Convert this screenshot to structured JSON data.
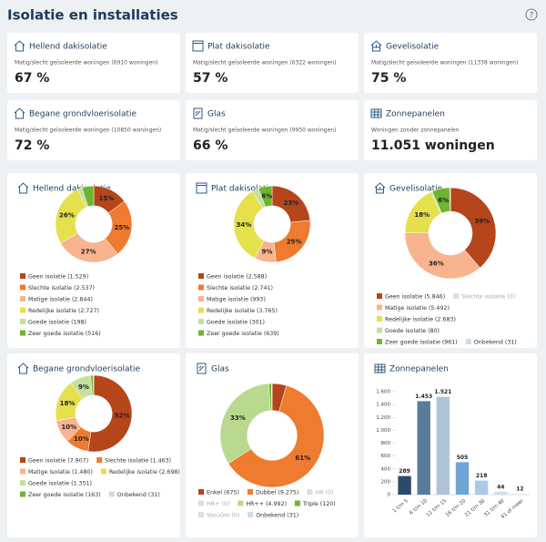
{
  "header": {
    "title": "Isolatie en installaties",
    "help": "?"
  },
  "kpis": [
    {
      "title": "Hellend dakisolatie",
      "subtitle": "Matig/slecht geïsoleerde woningen (6910 woningen)",
      "value": "67 %"
    },
    {
      "title": "Plat dakisolatie",
      "subtitle": "Matig/slecht geïsoleerde woningen (6322 woningen)",
      "value": "57 %"
    },
    {
      "title": "Gevelisolatie",
      "subtitle": "Matig/slecht geïsoleerde woningen (11338 woningen)",
      "value": "75 %"
    },
    {
      "title": "Begane grondvloerisolatie",
      "subtitle": "Matig/slecht geïsoleerde woningen (10850 woningen)",
      "value": "72 %"
    },
    {
      "title": "Glas",
      "subtitle": "Matig/slecht geïsoleerde woningen (9950 woningen)",
      "value": "66 %"
    },
    {
      "title": "Zonnepanelen",
      "subtitle": "Woningen zonder zonnepanelen",
      "value": "11.051 woningen"
    }
  ],
  "chart_data": [
    {
      "type": "donut",
      "title": "Hellend dakisolatie",
      "categories": [
        "Geen isolatie (1.529)",
        "Slechte isolatie (2.537)",
        "Matige isolatie (2.844)",
        "Redelijke isolatie (2.727)",
        "Goede isolatie (198)",
        "Zeer goede isolatie (516)"
      ],
      "values": [
        1529,
        2537,
        2844,
        2727,
        198,
        516
      ],
      "slice_labels": [
        "15%",
        "25%",
        "27%",
        "26%",
        null,
        null
      ],
      "colors": [
        "#b5451b",
        "#ee7b2f",
        "#f7b48e",
        "#e5e04b",
        "#c3e0a0",
        "#6db52e"
      ]
    },
    {
      "type": "donut",
      "title": "Plat dakisolatie",
      "categories": [
        "Geen isolatie (2.588)",
        "Slechte isolatie (2.741)",
        "Matige isolatie (993)",
        "Redelijke isolatie (3.765)",
        "Goede isolatie (301)",
        "Zeer goede isolatie (639)"
      ],
      "values": [
        2588,
        2741,
        993,
        3765,
        301,
        639
      ],
      "slice_labels": [
        "23%",
        "25%",
        "9%",
        "34%",
        null,
        "6%"
      ],
      "colors": [
        "#b5451b",
        "#ee7b2f",
        "#f7b48e",
        "#e5e04b",
        "#c3e0a0",
        "#6db52e"
      ]
    },
    {
      "type": "donut",
      "title": "Gevelisolatie",
      "categories": [
        "Geen isolatie (5.846)",
        "Slechte isolatie (0)",
        "Matige isolatie (5.492)",
        "Redelijke isolatie (2.683)",
        "Goede isolatie (80)",
        "Zeer goede isolatie (961)",
        "Onbekend (31)"
      ],
      "values": [
        5846,
        0,
        5492,
        2683,
        80,
        961,
        31
      ],
      "slice_labels": [
        "39%",
        null,
        "36%",
        "18%",
        null,
        "6%",
        null
      ],
      "colors": [
        "#b5451b",
        "#dddddd",
        "#f7b48e",
        "#e5e04b",
        "#c3e0a0",
        "#6db52e",
        "#cfdce8"
      ]
    },
    {
      "type": "donut",
      "title": "Begane grondvloerisolatie",
      "categories": [
        "Geen isolatie (7.907)",
        "Slechte isolatie (1.463)",
        "Matige isolatie (1.480)",
        "Redelijke isolatie (2.698)",
        "Goede isolatie (1.351)",
        "Zeer goede isolatie (163)",
        "Onbekend (31)"
      ],
      "values": [
        7907,
        1463,
        1480,
        2698,
        1351,
        163,
        31
      ],
      "slice_labels": [
        "52%",
        "10%",
        "10%",
        "18%",
        "9%",
        null,
        null
      ],
      "colors": [
        "#b5451b",
        "#ee7b2f",
        "#f7b48e",
        "#e5e04b",
        "#c3e0a0",
        "#6db52e",
        "#cfdce8"
      ]
    },
    {
      "type": "donut",
      "title": "Glas",
      "categories": [
        "Enkel (675)",
        "Dubbel (9.275)",
        "HR (0)",
        "HR+ (0)",
        "HR++ (4.992)",
        "Triple (120)",
        "Vacuüm (0)",
        "Onbekend (31)"
      ],
      "values": [
        675,
        9275,
        0,
        0,
        4992,
        120,
        0,
        31
      ],
      "slice_labels": [
        null,
        "61%",
        null,
        null,
        "33%",
        null,
        null,
        null
      ],
      "colors": [
        "#b5451b",
        "#ee7b2f",
        "#dddddd",
        "#dddddd",
        "#b9d98e",
        "#6db52e",
        "#dddddd",
        "#cfdce8"
      ]
    },
    {
      "type": "bar",
      "title": "Zonnepanelen",
      "categories": [
        "1 t/m 5",
        "6 t/m 10",
        "11 t/m 15",
        "16 t/m 20",
        "21 t/m 30",
        "31 t/m 40",
        "41 of meer"
      ],
      "values": [
        289,
        1453,
        1521,
        505,
        218,
        44,
        12
      ],
      "value_labels": [
        "289",
        "1.453",
        "1.521",
        "505",
        "218",
        "44",
        "12"
      ],
      "colors": [
        "#2c4a6b",
        "#5a7c9a",
        "#b0c4d6",
        "#6fa6d6",
        "#a8cbe8",
        "#c9dff0",
        "#dde9f3"
      ],
      "ylim": [
        0,
        1600
      ],
      "yticks": [
        0,
        200,
        400,
        600,
        800,
        {
          "value": 1000,
          "label": "1.000"
        },
        {
          "value": 1200,
          "label": "1.200"
        },
        {
          "value": 1400,
          "label": "1.400"
        },
        {
          "value": 1600,
          "label": "1.600"
        }
      ]
    }
  ]
}
